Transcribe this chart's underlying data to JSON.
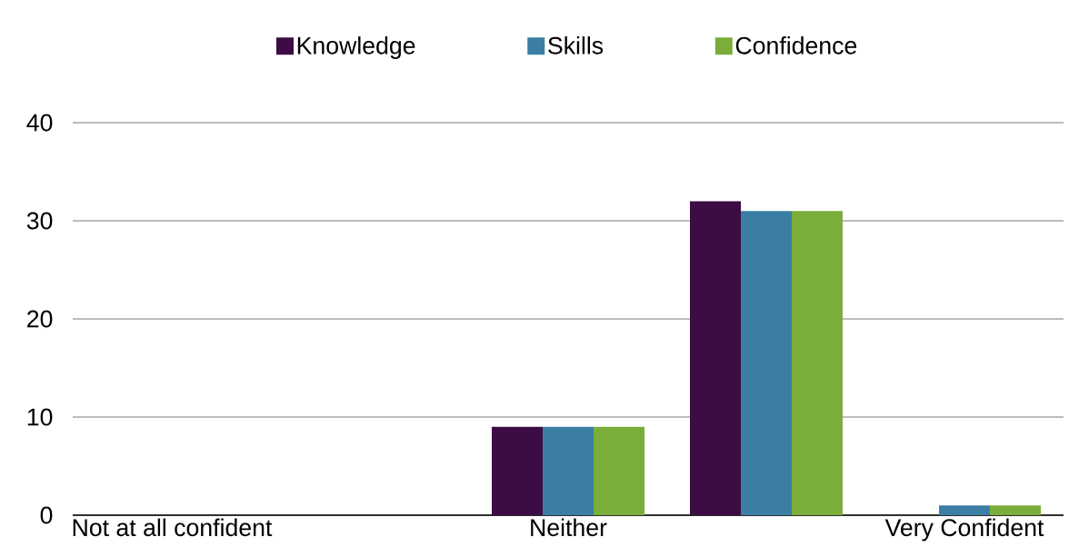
{
  "chart_data": {
    "type": "bar",
    "categories": [
      "Not at all confident",
      null,
      "Neither",
      null,
      "Very Confident"
    ],
    "series": [
      {
        "name": "Knowledge",
        "color": "#3d0c45",
        "values": [
          0,
          0,
          9,
          32,
          0
        ]
      },
      {
        "name": "Skills",
        "color": "#3a7fa3",
        "values": [
          0,
          0,
          9,
          31,
          1
        ]
      },
      {
        "name": "Confidence",
        "color": "#7aad3a",
        "values": [
          0,
          0,
          9,
          31,
          1
        ]
      }
    ],
    "ylim": [
      0,
      40
    ],
    "yticks": [
      0,
      10,
      20,
      30,
      40
    ],
    "grid": "y",
    "legend": "top"
  }
}
